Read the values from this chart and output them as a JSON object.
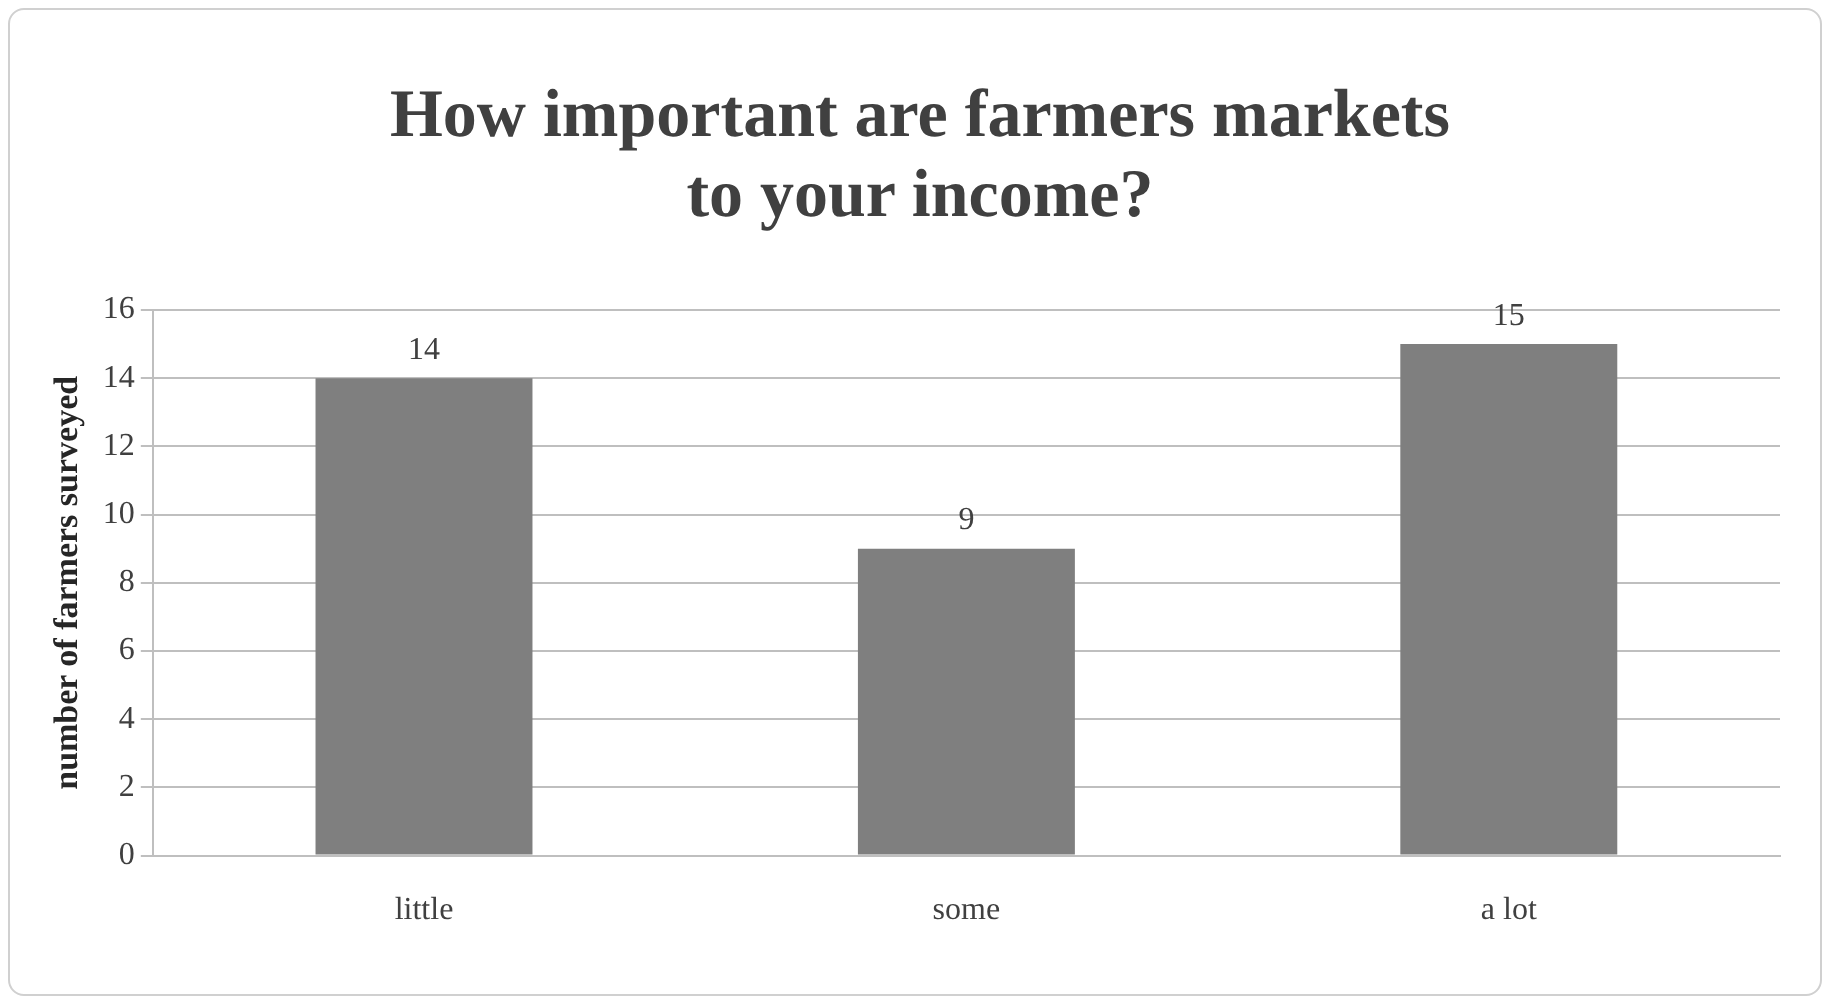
{
  "chart_data": {
    "type": "bar",
    "title": "How important are farmers markets to your income?",
    "ylabel": "number of farmers surveyed",
    "categories": [
      "little",
      "some",
      "a lot"
    ],
    "values": [
      14,
      9,
      15
    ],
    "color": "#7f7f7f",
    "ylim": [
      0,
      16
    ],
    "yticks": [
      0,
      2,
      4,
      6,
      8,
      10,
      12,
      14,
      16
    ],
    "grid": "y",
    "data_labels": true,
    "legend": false
  }
}
